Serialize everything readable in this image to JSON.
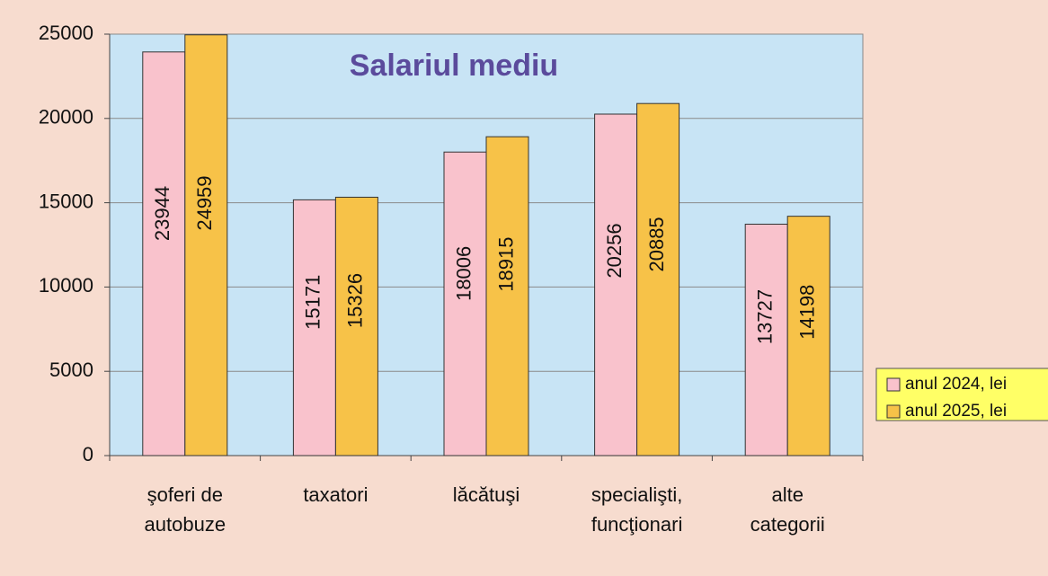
{
  "chart_data": {
    "type": "bar",
    "title": "Salariul mediu",
    "categories": [
      "şoferi de\nautobuze",
      "taxatori",
      "lăcătuşi",
      "specialişti,\nfuncţionari",
      "alte\ncategorii"
    ],
    "series": [
      {
        "name": "anul 2024, lei",
        "color": "#f9c2cc",
        "values": [
          23944,
          15171,
          18006,
          20256,
          13727
        ]
      },
      {
        "name": "anul 2025, lei",
        "color": "#f7c248",
        "values": [
          24959,
          15326,
          18915,
          20885,
          14198
        ]
      }
    ],
    "ylim": [
      0,
      25000
    ],
    "yticks": [
      0,
      5000,
      10000,
      15000,
      20000,
      25000
    ],
    "grid": true,
    "legend": "right"
  }
}
